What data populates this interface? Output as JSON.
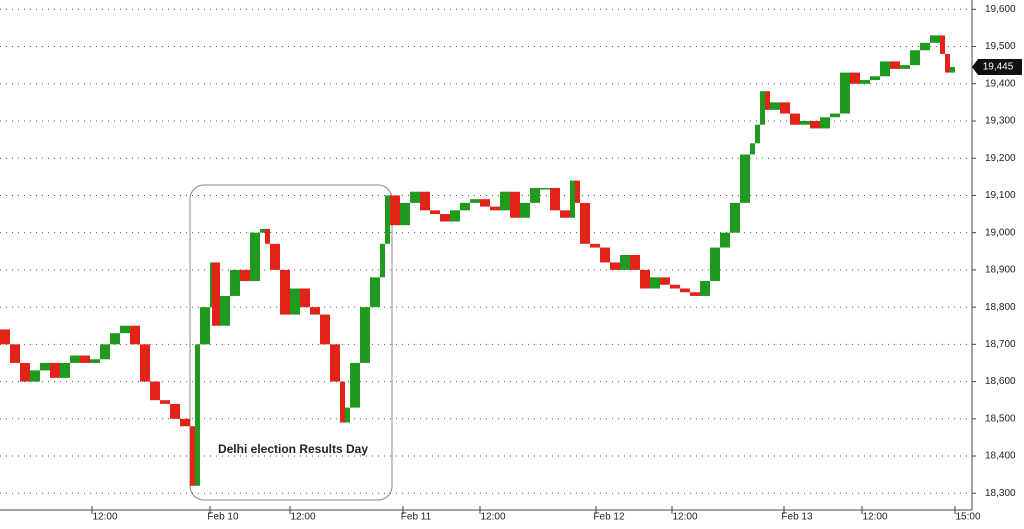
{
  "chart_data": {
    "type": "candle-line",
    "annotation": "Delhi election Results Day",
    "last_price_label": "19,445",
    "up_color": "#1f9a1f",
    "down_color": "#e2231a",
    "grid": true,
    "x": [
      0,
      10,
      20,
      30,
      40,
      50,
      60,
      70,
      80,
      90,
      100,
      110,
      120,
      130,
      140,
      150,
      160,
      170,
      180,
      190,
      195,
      200,
      210,
      212,
      220,
      230,
      240,
      250,
      260,
      265,
      270,
      280,
      290,
      300,
      310,
      320,
      330,
      340,
      345,
      350,
      360,
      370,
      380,
      385,
      390,
      400,
      410,
      420,
      430,
      440,
      450,
      460,
      470,
      480,
      490,
      500,
      510,
      520,
      530,
      540,
      550,
      560,
      570,
      575,
      580,
      590,
      600,
      610,
      620,
      630,
      640,
      650,
      660,
      670,
      680,
      690,
      700,
      710,
      720,
      730,
      740,
      750,
      755,
      760,
      765,
      770,
      780,
      790,
      800,
      810,
      820,
      830,
      840,
      850,
      860,
      870,
      880,
      890,
      900,
      910,
      920,
      930,
      940,
      945,
      950,
      955
    ],
    "values": [
      18740,
      18700,
      18650,
      18600,
      18630,
      18650,
      18610,
      18650,
      18670,
      18650,
      18660,
      18700,
      18730,
      18750,
      18700,
      18600,
      18550,
      18540,
      18500,
      18480,
      18320,
      18700,
      18800,
      18920,
      18750,
      18830,
      18900,
      18870,
      19000,
      19010,
      18970,
      18900,
      18780,
      18850,
      18800,
      18780,
      18700,
      18600,
      18490,
      18530,
      18650,
      18800,
      18880,
      18970,
      19100,
      19020,
      19080,
      19110,
      19060,
      19050,
      19030,
      19060,
      19080,
      19090,
      19070,
      19060,
      19110,
      19040,
      19080,
      19120,
      19120,
      19060,
      19040,
      19140,
      19080,
      18970,
      18960,
      18920,
      18900,
      18940,
      18900,
      18850,
      18880,
      18860,
      18850,
      18840,
      18830,
      18870,
      18960,
      19000,
      19080,
      19210,
      19240,
      19290,
      19380,
      19330,
      19350,
      19320,
      19290,
      19300,
      19280,
      19310,
      19320,
      19430,
      19400,
      19410,
      19420,
      19460,
      19440,
      19450,
      19490,
      19510,
      19530,
      19480,
      19430,
      19445
    ],
    "xlim": [
      0,
      970
    ],
    "xticks": [
      {
        "value": 92,
        "label": "12:00"
      },
      {
        "value": 210,
        "label": "Feb 10"
      },
      {
        "value": 290,
        "label": "12:00"
      },
      {
        "value": 403,
        "label": "Feb 11"
      },
      {
        "value": 480,
        "label": "12:00"
      },
      {
        "value": 596,
        "label": "Feb 12"
      },
      {
        "value": 672,
        "label": "12:00"
      },
      {
        "value": 784,
        "label": "Feb 13"
      },
      {
        "value": 862,
        "label": "12:00"
      },
      {
        "value": 955,
        "label": "15:00"
      }
    ],
    "ylim": [
      18255,
      19625
    ],
    "yticks": [
      {
        "value": 18300,
        "label": "18,300"
      },
      {
        "value": 18400,
        "label": "18,400"
      },
      {
        "value": 18500,
        "label": "18,500"
      },
      {
        "value": 18600,
        "label": "18,600"
      },
      {
        "value": 18700,
        "label": "18,700"
      },
      {
        "value": 18800,
        "label": "18,800"
      },
      {
        "value": 18900,
        "label": "18,900"
      },
      {
        "value": 19000,
        "label": "19,000"
      },
      {
        "value": 19100,
        "label": "19,100"
      },
      {
        "value": 19200,
        "label": "19,200"
      },
      {
        "value": 19300,
        "label": "19,300"
      },
      {
        "value": 19400,
        "label": "19,400"
      },
      {
        "value": 19500,
        "label": "19,500"
      },
      {
        "value": 19600,
        "label": "19,600"
      }
    ]
  }
}
